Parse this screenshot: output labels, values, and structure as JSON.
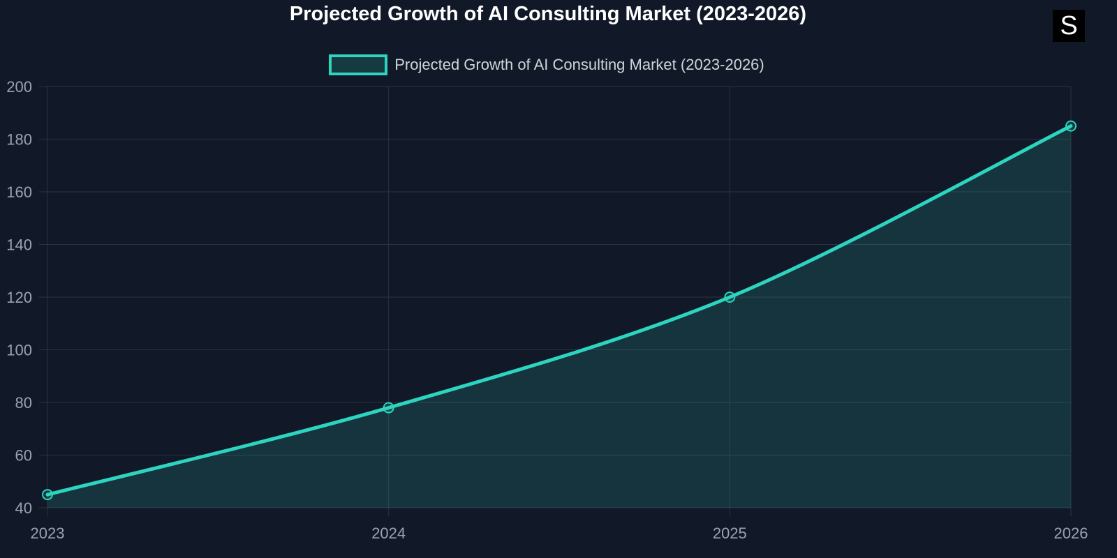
{
  "logo_text": "S",
  "chart_data": {
    "type": "line",
    "title": "Projected Growth of AI Consulting Market (2023-2026)",
    "categories": [
      "2023",
      "2024",
      "2025",
      "2026"
    ],
    "series": [
      {
        "name": "Projected Growth of AI Consulting Market (2023-2026)",
        "values": [
          45,
          78,
          120,
          185
        ],
        "fill": true
      }
    ],
    "xlabel": "",
    "ylabel": "",
    "ylim": [
      40,
      200
    ],
    "yticks": [
      40,
      60,
      80,
      100,
      120,
      140,
      160,
      180,
      200
    ],
    "grid": true,
    "legend": "top-center",
    "colors": {
      "line": "#2dd4bf",
      "fill": "rgba(45,212,191,0.15)",
      "grid": "#2a3342",
      "tick": "#9ca3af",
      "background": "#111827"
    }
  }
}
